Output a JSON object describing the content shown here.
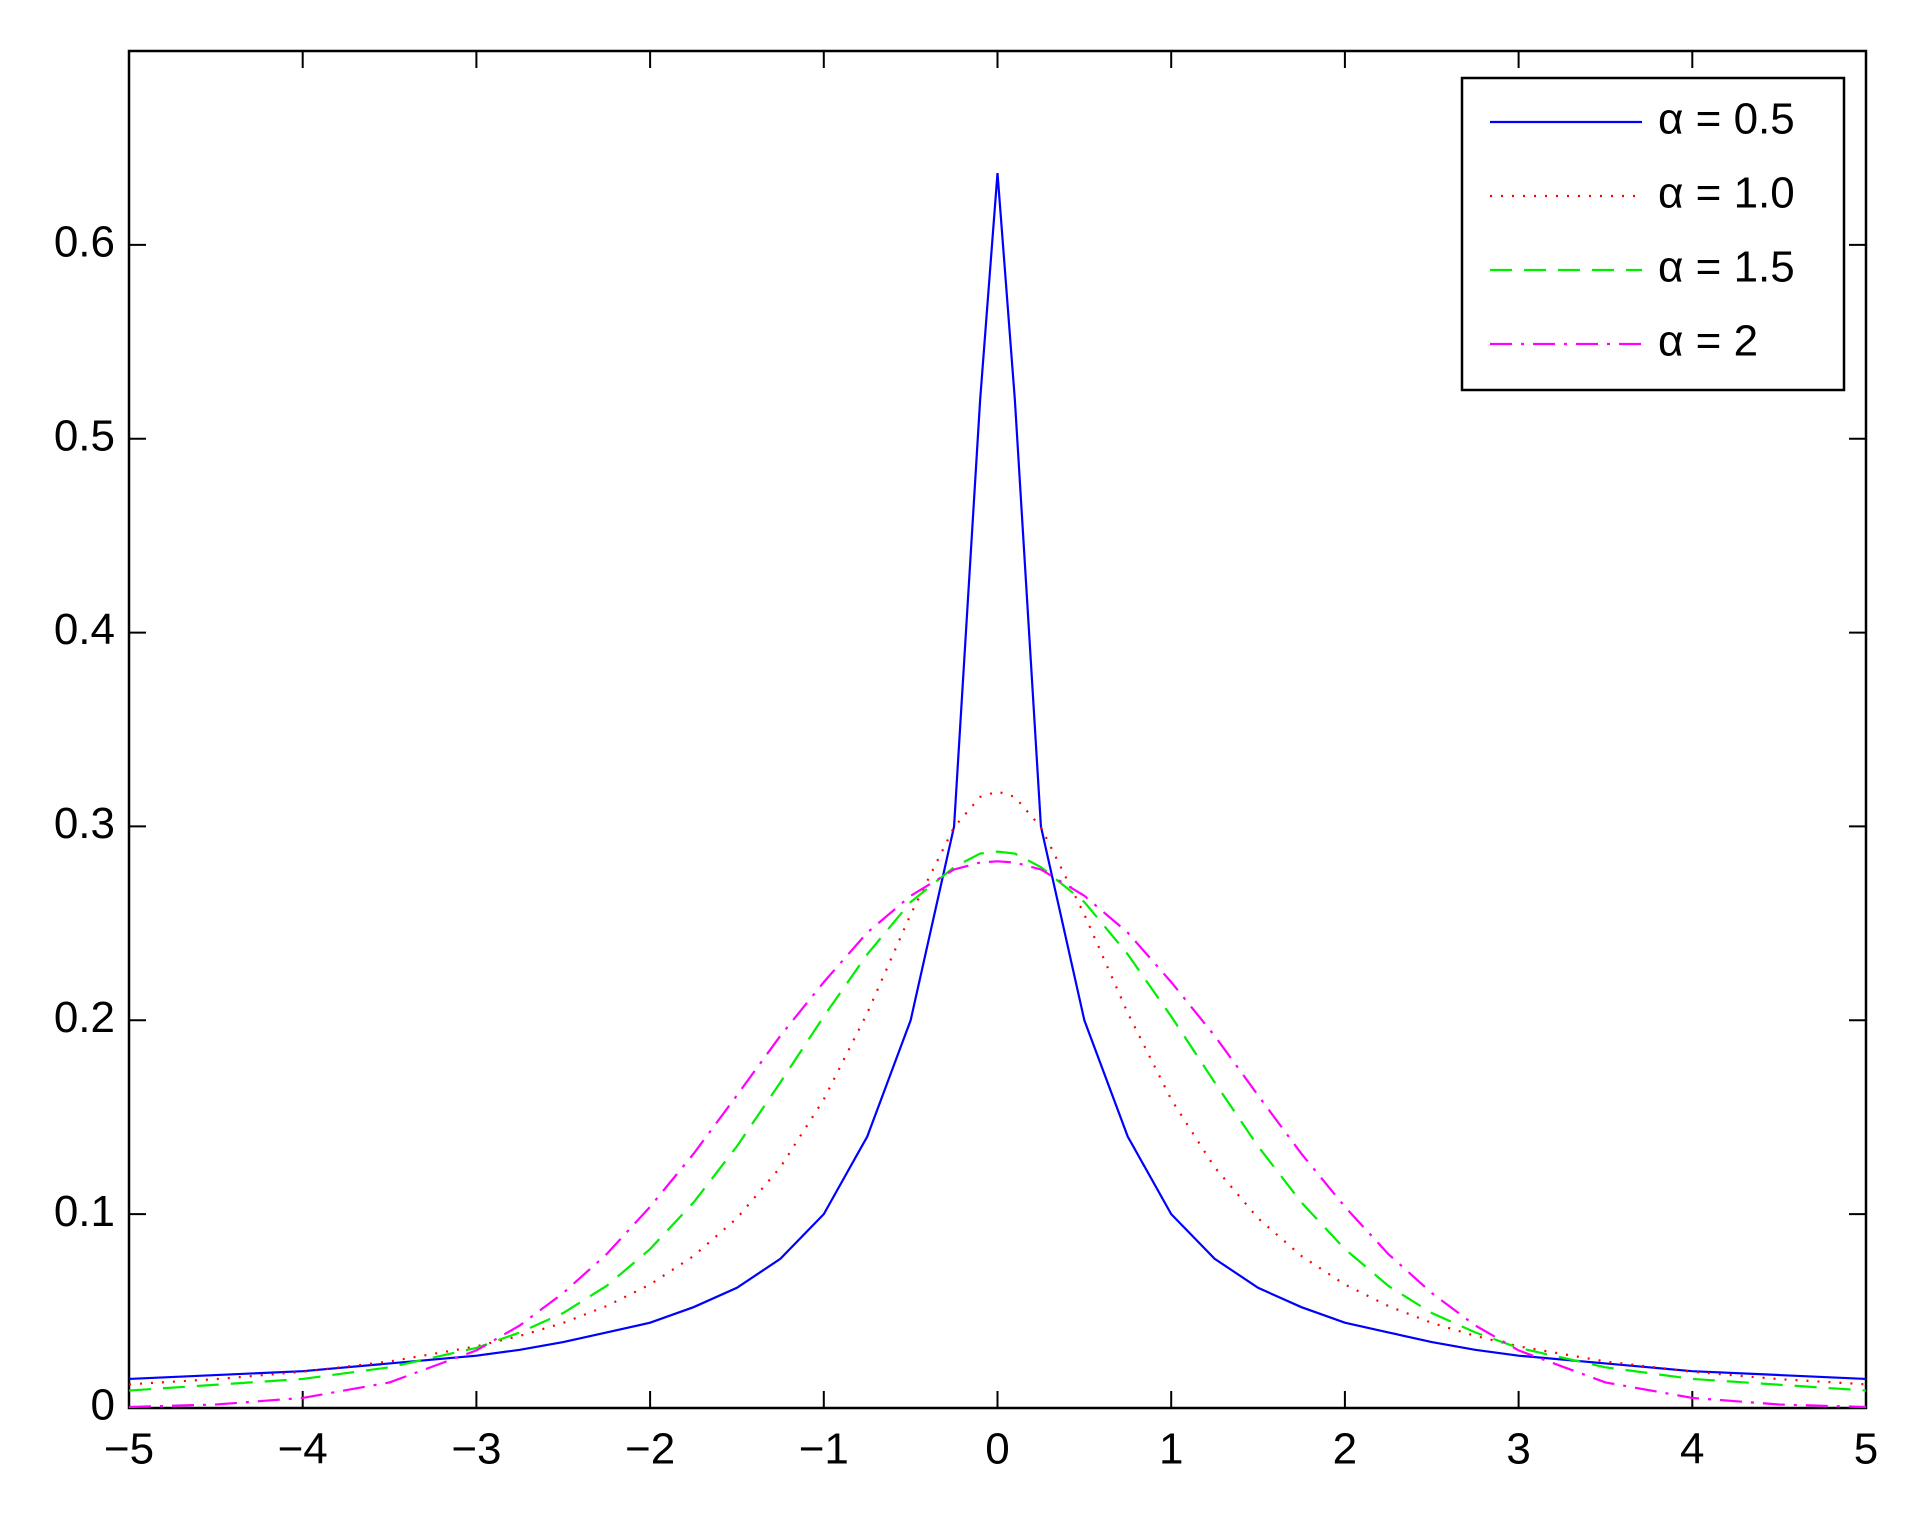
{
  "chart_data": {
    "type": "line",
    "x": [
      -5,
      -4.5,
      -4,
      -3.5,
      -3,
      -2.75,
      -2.5,
      -2.25,
      -2,
      -1.75,
      -1.5,
      -1.25,
      -1,
      -0.75,
      -0.5,
      -0.25,
      -0.1,
      0,
      0.1,
      0.25,
      0.5,
      0.75,
      1,
      1.25,
      1.5,
      1.75,
      2,
      2.25,
      2.5,
      2.75,
      3,
      3.5,
      4,
      4.5,
      5
    ],
    "series": [
      {
        "name": "α = 0.5",
        "color": "#0000ff",
        "dash": "solid",
        "values": [
          0.015,
          0.017,
          0.019,
          0.023,
          0.027,
          0.03,
          0.034,
          0.039,
          0.044,
          0.052,
          0.062,
          0.077,
          0.1,
          0.14,
          0.2,
          0.3,
          0.52,
          0.637,
          0.52,
          0.3,
          0.2,
          0.14,
          0.1,
          0.077,
          0.062,
          0.052,
          0.044,
          0.039,
          0.034,
          0.03,
          0.027,
          0.023,
          0.019,
          0.017,
          0.015
        ]
      },
      {
        "name": "α = 1.0",
        "color": "#ff0000",
        "dash": "dotted",
        "values": [
          0.0122,
          0.0149,
          0.0187,
          0.024,
          0.0318,
          0.0372,
          0.0439,
          0.0526,
          0.0637,
          0.0784,
          0.0979,
          0.1242,
          0.1592,
          0.2037,
          0.2546,
          0.2996,
          0.3152,
          0.318,
          0.3152,
          0.2996,
          0.2546,
          0.2037,
          0.1592,
          0.1242,
          0.0979,
          0.0784,
          0.0637,
          0.0526,
          0.0439,
          0.0372,
          0.0318,
          0.024,
          0.0187,
          0.0149,
          0.0122
        ]
      },
      {
        "name": "α = 1.5",
        "color": "#00ee00",
        "dash": "dashed",
        "values": [
          0.009,
          0.012,
          0.015,
          0.021,
          0.031,
          0.039,
          0.049,
          0.063,
          0.082,
          0.106,
          0.135,
          0.168,
          0.202,
          0.234,
          0.261,
          0.279,
          0.286,
          0.287,
          0.286,
          0.279,
          0.261,
          0.234,
          0.202,
          0.168,
          0.135,
          0.106,
          0.082,
          0.063,
          0.049,
          0.039,
          0.031,
          0.021,
          0.015,
          0.012,
          0.009
        ]
      },
      {
        "name": "α = 2",
        "color": "#ff00ff",
        "dash": "dashdot",
        "values": [
          0.0005,
          0.0018,
          0.0052,
          0.0132,
          0.0297,
          0.0426,
          0.0593,
          0.0794,
          0.1038,
          0.1311,
          0.1613,
          0.192,
          0.2197,
          0.2452,
          0.2642,
          0.2778,
          0.2814,
          0.282,
          0.2814,
          0.2778,
          0.2642,
          0.2452,
          0.2197,
          0.192,
          0.1613,
          0.1311,
          0.1038,
          0.0794,
          0.0593,
          0.0426,
          0.0297,
          0.0132,
          0.0052,
          0.0018,
          0.0005
        ]
      }
    ],
    "xlim": [
      -5,
      5
    ],
    "xticks": [
      {
        "value": -5,
        "label": "−5"
      },
      {
        "value": -4,
        "label": "−4"
      },
      {
        "value": -3,
        "label": "−3"
      },
      {
        "value": -2,
        "label": "−2"
      },
      {
        "value": -1,
        "label": "−1"
      },
      0,
      1,
      2,
      3,
      4,
      5
    ],
    "ylim": [
      0,
      0.7
    ],
    "yticks": [
      0,
      0.1,
      0.2,
      0.3,
      0.4,
      0.5,
      0.6
    ],
    "legend": "top-right"
  }
}
